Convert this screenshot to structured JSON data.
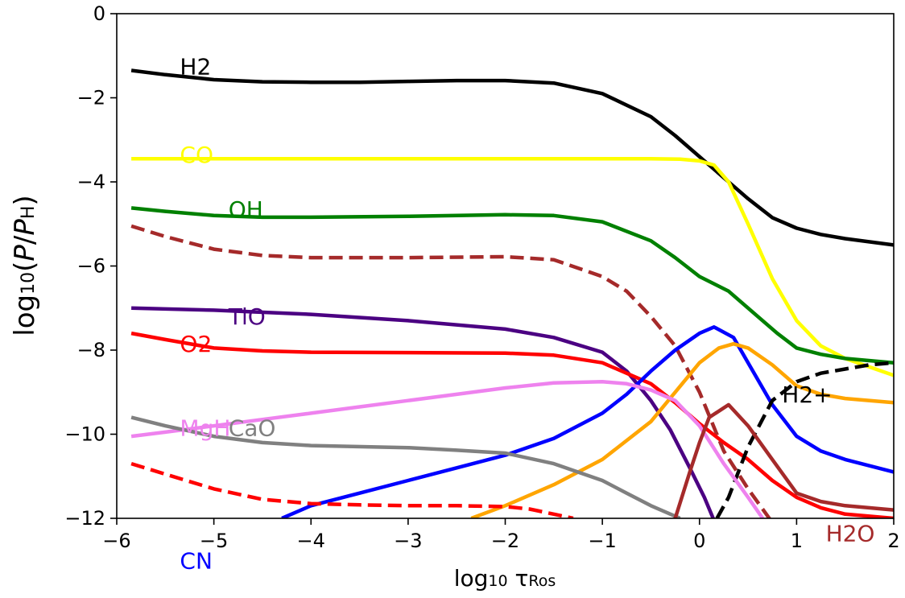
{
  "chart_data": {
    "type": "line",
    "xlabel": "log10 τRos",
    "ylabel": "log10(P/PH)",
    "xlim": [
      -6,
      2
    ],
    "ylim": [
      -12,
      0
    ],
    "x_ticks": [
      -6,
      -5,
      -4,
      -3,
      -2,
      -1,
      0,
      1,
      2
    ],
    "x_tick_labels": [
      "−6",
      "−5",
      "−4",
      "−3",
      "−2",
      "−1",
      "0",
      "1",
      "2"
    ],
    "y_ticks": [
      0,
      -2,
      -4,
      -6,
      -8,
      -10,
      -12
    ],
    "y_tick_labels": [
      "0",
      "−2",
      "−4",
      "−6",
      "−8",
      "−10",
      "−12"
    ],
    "grid": false,
    "legend": "none",
    "series": [
      {
        "name": "H2",
        "color": "#000000",
        "style": "solid",
        "label_pos": [
          -5.35,
          -1.25
        ],
        "x": [
          -5.85,
          -5.5,
          -5,
          -4.5,
          -4,
          -3.5,
          -3,
          -2.5,
          -2,
          -1.5,
          -1,
          -0.5,
          -0.25,
          0,
          0.25,
          0.5,
          0.75,
          1,
          1.25,
          1.5,
          2
        ],
        "y": [
          -1.35,
          -1.45,
          -1.57,
          -1.62,
          -1.63,
          -1.63,
          -1.61,
          -1.59,
          -1.59,
          -1.65,
          -1.9,
          -2.45,
          -2.9,
          -3.4,
          -3.9,
          -4.4,
          -4.85,
          -5.1,
          -5.25,
          -5.35,
          -5.5
        ]
      },
      {
        "name": "CO",
        "color": "#ffff00",
        "style": "solid",
        "label_pos": [
          -5.35,
          -3.35
        ],
        "x": [
          -5.85,
          -5,
          -4,
          -3,
          -2,
          -1,
          -0.5,
          -0.2,
          0,
          0.15,
          0.3,
          0.5,
          0.75,
          1,
          1.25,
          1.5,
          2
        ],
        "y": [
          -3.45,
          -3.45,
          -3.45,
          -3.45,
          -3.45,
          -3.45,
          -3.45,
          -3.46,
          -3.5,
          -3.6,
          -4,
          -5,
          -6.3,
          -7.3,
          -7.9,
          -8.2,
          -8.6
        ]
      },
      {
        "name": "OH",
        "color": "#008000",
        "style": "solid",
        "label_pos": [
          -4.85,
          -4.65
        ],
        "x": [
          -5.85,
          -5.5,
          -5,
          -4.5,
          -4,
          -3,
          -2,
          -1.5,
          -1,
          -0.5,
          -0.25,
          0,
          0.3,
          0.6,
          0.8,
          1,
          1.25,
          1.5,
          2
        ],
        "y": [
          -4.62,
          -4.7,
          -4.8,
          -4.84,
          -4.84,
          -4.82,
          -4.78,
          -4.8,
          -4.95,
          -5.4,
          -5.8,
          -6.25,
          -6.6,
          -7.2,
          -7.6,
          -7.95,
          -8.1,
          -8.2,
          -8.3
        ]
      },
      {
        "name": "",
        "color": "#a52a2a",
        "style": "dashed",
        "x": [
          -5.85,
          -5.5,
          -5,
          -4.5,
          -4,
          -3,
          -2,
          -1.5,
          -1,
          -0.75,
          -0.5,
          -0.25,
          0,
          0.25,
          0.5,
          0.75
        ],
        "y": [
          -5.05,
          -5.3,
          -5.6,
          -5.75,
          -5.8,
          -5.8,
          -5.78,
          -5.85,
          -6.25,
          -6.6,
          -7.2,
          -7.9,
          -9,
          -10.4,
          -11.3,
          -12.1
        ]
      },
      {
        "name": "TiO",
        "color": "#4b0082",
        "style": "solid",
        "label_pos": [
          -4.85,
          -7.2
        ],
        "x": [
          -5.85,
          -5,
          -4,
          -3,
          -2,
          -1.5,
          -1,
          -0.75,
          -0.5,
          -0.3,
          -0.1,
          0.05,
          0.15
        ],
        "y": [
          -7.0,
          -7.05,
          -7.15,
          -7.3,
          -7.5,
          -7.7,
          -8.05,
          -8.5,
          -9.2,
          -9.9,
          -10.8,
          -11.5,
          -12.05
        ]
      },
      {
        "name": "O2",
        "color": "#ff0000",
        "style": "solid",
        "label_pos": [
          -5.35,
          -7.85
        ],
        "x": [
          -5.85,
          -5.5,
          -5,
          -4.5,
          -4,
          -3,
          -2,
          -1.5,
          -1,
          -0.5,
          -0.25,
          0,
          0.25,
          0.5,
          0.75,
          1,
          1.25,
          1.5,
          2
        ],
        "y": [
          -7.6,
          -7.75,
          -7.95,
          -8.02,
          -8.05,
          -8.06,
          -8.07,
          -8.12,
          -8.3,
          -8.8,
          -9.25,
          -9.75,
          -10.2,
          -10.6,
          -11.1,
          -11.5,
          -11.75,
          -11.9,
          -12.0
        ]
      },
      {
        "name": "CN",
        "color": "#0000ff",
        "style": "solid",
        "label_pos": [
          -5.35,
          -13.0
        ],
        "x": [
          -4.3,
          -4,
          -3.5,
          -3,
          -2.5,
          -2,
          -1.5,
          -1,
          -0.75,
          -0.5,
          -0.25,
          0,
          0.15,
          0.35,
          0.5,
          0.75,
          1,
          1.25,
          1.5,
          2
        ],
        "y": [
          -12.0,
          -11.7,
          -11.4,
          -11.1,
          -10.8,
          -10.5,
          -10.1,
          -9.5,
          -9.05,
          -8.5,
          -8.0,
          -7.6,
          -7.45,
          -7.7,
          -8.3,
          -9.3,
          -10.05,
          -10.4,
          -10.6,
          -10.9
        ]
      },
      {
        "name": "",
        "color": "#ffa500",
        "style": "solid",
        "x": [
          -2.35,
          -2,
          -1.5,
          -1,
          -0.5,
          -0.25,
          0,
          0.2,
          0.35,
          0.5,
          0.75,
          1,
          1.25,
          1.5,
          2
        ],
        "y": [
          -12.0,
          -11.7,
          -11.2,
          -10.6,
          -9.7,
          -9.0,
          -8.3,
          -7.95,
          -7.85,
          -7.95,
          -8.35,
          -8.85,
          -9.05,
          -9.15,
          -9.25
        ]
      },
      {
        "name": "",
        "color": "#000000",
        "style": "dashed",
        "label": "H2+",
        "label_pos": [
          0.85,
          -9.05
        ],
        "x": [
          0.18,
          0.3,
          0.5,
          0.75,
          1,
          1.25,
          1.5,
          1.75,
          2
        ],
        "y": [
          -12.0,
          -11.5,
          -10.3,
          -9.2,
          -8.75,
          -8.55,
          -8.45,
          -8.35,
          -8.3
        ]
      },
      {
        "name": "MgH",
        "color": "#ee82ee",
        "style": "solid",
        "label_pos": [
          -5.35,
          -9.85
        ],
        "x": [
          -5.85,
          -5.5,
          -5,
          -4.5,
          -4,
          -3.5,
          -3,
          -2.5,
          -2,
          -1.5,
          -1,
          -0.75,
          -0.5,
          -0.25,
          0,
          0.25,
          0.5,
          0.65
        ],
        "y": [
          -10.05,
          -9.95,
          -9.8,
          -9.65,
          -9.5,
          -9.35,
          -9.2,
          -9.05,
          -8.9,
          -8.78,
          -8.75,
          -8.8,
          -8.95,
          -9.2,
          -9.8,
          -10.7,
          -11.5,
          -12.0
        ]
      },
      {
        "name": "CaO",
        "color": "#808080",
        "style": "solid",
        "label_pos": [
          -4.85,
          -9.85
        ],
        "x": [
          -5.85,
          -5.5,
          -5,
          -4.5,
          -4,
          -3,
          -2.5,
          -2,
          -1.5,
          -1,
          -0.75,
          -0.5,
          -0.3,
          -0.2
        ],
        "y": [
          -9.6,
          -9.8,
          -10.05,
          -10.2,
          -10.27,
          -10.32,
          -10.38,
          -10.45,
          -10.7,
          -11.1,
          -11.4,
          -11.7,
          -11.9,
          -12.0
        ]
      },
      {
        "name": "H2O",
        "color": "#a52a2a",
        "style": "solid",
        "label_pos": [
          1.3,
          -12.35
        ],
        "x": [
          -0.25,
          -0.1,
          0,
          0.1,
          0.3,
          0.5,
          0.75,
          1,
          1.25,
          1.5,
          2
        ],
        "y": [
          -12.0,
          -10.9,
          -10.2,
          -9.6,
          -9.3,
          -9.8,
          -10.6,
          -11.4,
          -11.6,
          -11.7,
          -11.8
        ]
      },
      {
        "name": "",
        "color": "#ff0000",
        "style": "dashed",
        "x": [
          -5.85,
          -5.5,
          -5,
          -4.5,
          -4,
          -3.5,
          -3,
          -2.5,
          -2,
          -1.75,
          -1.5,
          -1.3
        ],
        "y": [
          -10.7,
          -10.95,
          -11.3,
          -11.55,
          -11.65,
          -11.68,
          -11.7,
          -11.7,
          -11.72,
          -11.78,
          -11.9,
          -12.0
        ]
      }
    ]
  }
}
